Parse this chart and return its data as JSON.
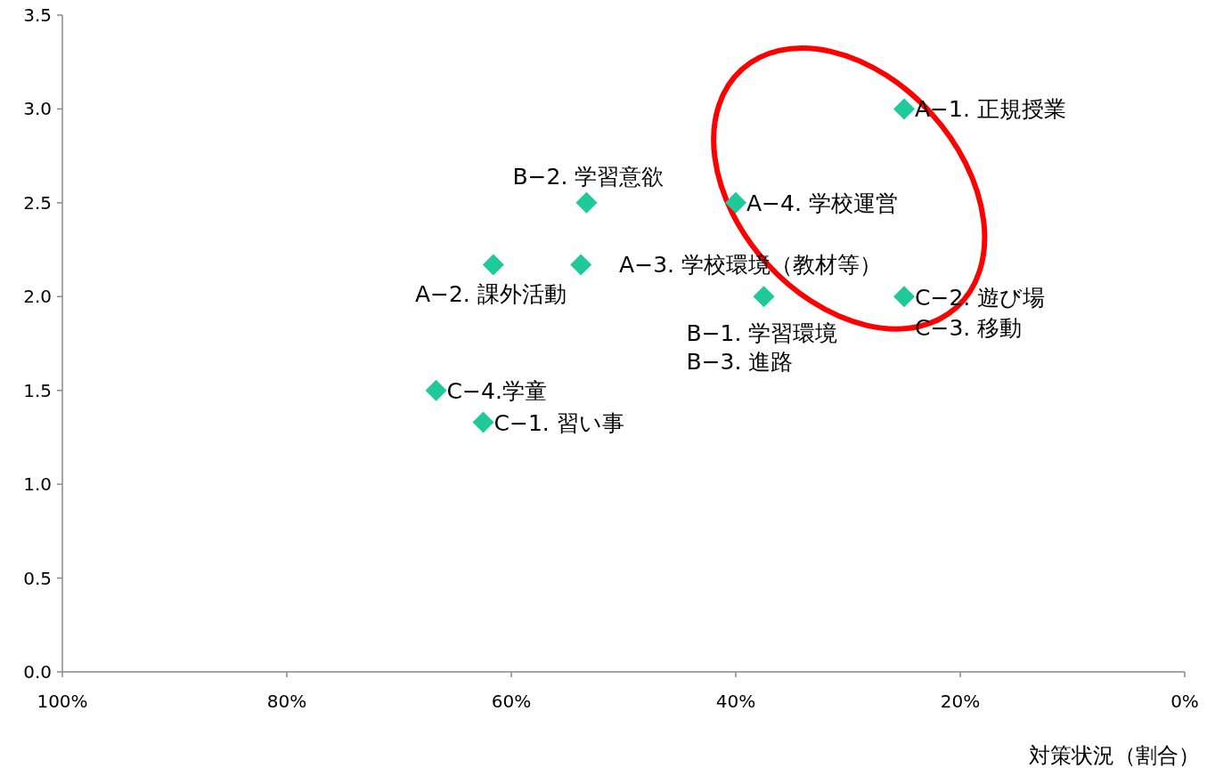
{
  "chart_data": {
    "type": "scatter",
    "xlabel": "対策状況（割合）",
    "x": [
      25,
      40,
      53.3,
      53.8,
      61.6,
      37.5,
      25,
      66.7,
      62.5
    ],
    "series": [
      {
        "color": "#1fc99a",
        "values": [
          3.0,
          2.5,
          2.5,
          2.17,
          2.17,
          2.0,
          2.0,
          1.5,
          1.33
        ]
      }
    ],
    "marker": "diamond",
    "xlim": [
      100,
      0
    ],
    "xticks": [
      {
        "value": 100,
        "label": "100%"
      },
      {
        "value": 80,
        "label": "80%"
      },
      {
        "value": 60,
        "label": "60%"
      },
      {
        "value": 40,
        "label": "40%"
      },
      {
        "value": 20,
        "label": "20%"
      },
      {
        "value": 0,
        "label": "0%"
      }
    ],
    "ylim": [
      0,
      3.5
    ],
    "yticks": [
      {
        "value": 0,
        "label": "0.0"
      },
      {
        "value": 0.5,
        "label": "0.5"
      },
      {
        "value": 1,
        "label": "1.0"
      },
      {
        "value": 1.5,
        "label": "1.5"
      },
      {
        "value": 2,
        "label": "2.0"
      },
      {
        "value": 2.5,
        "label": "2.5"
      },
      {
        "value": 3,
        "label": "3.0"
      },
      {
        "value": 3.5,
        "label": "3.5"
      }
    ],
    "grid": false,
    "annotations": [
      {
        "text": "A−1. 正規授業",
        "x": 25,
        "y": 3.0
      },
      {
        "text": "A−4. 学校運営",
        "x": 40,
        "y": 2.5
      },
      {
        "text": "B−2. 学習意欲",
        "x": 53.3,
        "y": 2.5
      },
      {
        "text": "A−3. 学校環境（教材等）",
        "x": 53.8,
        "y": 2.17
      },
      {
        "text": "A−2. 課外活動",
        "x": 61.6,
        "y": 2.17
      },
      {
        "text": "B−1. 学習環境",
        "x": 37.5,
        "y": 2.0
      },
      {
        "text": "B−3. 進路",
        "x": 37.5,
        "y": 2.0
      },
      {
        "text": "C−2. 遊び場",
        "x": 25,
        "y": 2.0
      },
      {
        "text": "C−3. 移動",
        "x": 25,
        "y": 2.0
      },
      {
        "text": "C−4.学童",
        "x": 66.7,
        "y": 1.5
      },
      {
        "text": "C−1. 習い事",
        "x": 62.5,
        "y": 1.33
      }
    ]
  }
}
